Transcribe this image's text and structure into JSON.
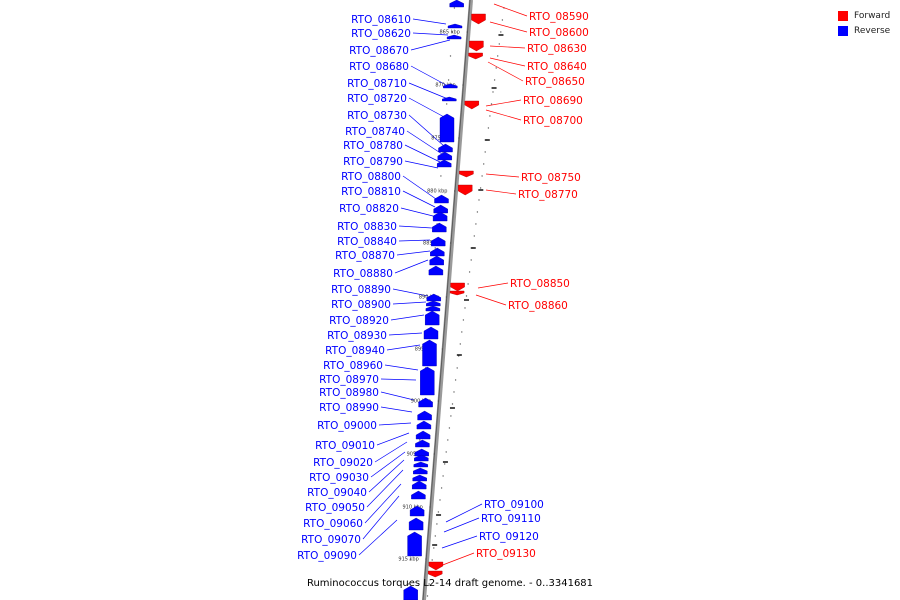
{
  "legend": {
    "forward_label": "Forward",
    "reverse_label": "Reverse",
    "forward_color": "#ff0000",
    "reverse_color": "#0000ff"
  },
  "footer_caption": "Ruminococcus torques L2-14 draft genome. - 0..3341681",
  "ruler_ticks": [
    "865 kbp",
    "870 kbp",
    "875 kbp",
    "880 kbp",
    "885 kbp",
    "890 kbp",
    "895 kbp",
    "900 kbp",
    "905 kbp",
    "910 kbp",
    "915 kbp"
  ],
  "reverse_genes": [
    "RTO_08610",
    "RTO_08620",
    "RTO_08670",
    "RTO_08680",
    "RTO_08710",
    "RTO_08720",
    "RTO_08730",
    "RTO_08740",
    "RTO_08780",
    "RTO_08790",
    "RTO_08800",
    "RTO_08810",
    "RTO_08820",
    "RTO_08830",
    "RTO_08840",
    "RTO_08870",
    "RTO_08880",
    "RTO_08890",
    "RTO_08900",
    "RTO_08920",
    "RTO_08930",
    "RTO_08940",
    "RTO_08960",
    "RTO_08970",
    "RTO_08980",
    "RTO_08990",
    "RTO_09000",
    "RTO_09010",
    "RTO_09020",
    "RTO_09030",
    "RTO_09040",
    "RTO_09050",
    "RTO_09060",
    "RTO_09070",
    "RTO_09090"
  ],
  "forward_genes": [
    "RTO_08590",
    "RTO_08600",
    "RTO_08630",
    "RTO_08640",
    "RTO_08650",
    "RTO_08690",
    "RTO_08700",
    "RTO_08750",
    "RTO_08770",
    "RTO_08850",
    "RTO_08860"
  ],
  "unstranded_genes": [
    "RTO_09100",
    "RTO_09110",
    "RTO_09120"
  ],
  "forward_genes_lower": [
    "RTO_09130"
  ]
}
